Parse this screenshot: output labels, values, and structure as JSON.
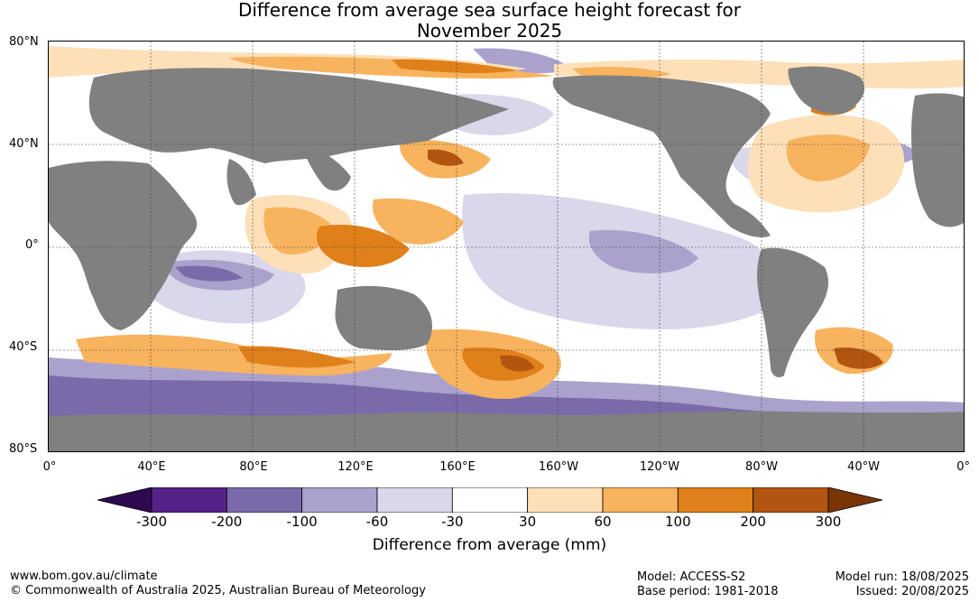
{
  "title": {
    "line1": "Difference from average sea surface height forecast for",
    "line2": "November 2025"
  },
  "map": {
    "lat_labels": [
      "80°N",
      "40°N",
      "0°",
      "40°S",
      "80°S"
    ],
    "lon_labels": [
      "0°",
      "40°E",
      "80°E",
      "120°E",
      "160°E",
      "160°W",
      "120°W",
      "80°W",
      "40°W",
      "0°"
    ],
    "land_color": "#808080",
    "grid": true
  },
  "colorbar": {
    "colors": [
      "#2d0a4f",
      "#56228a",
      "#7a6aaa",
      "#aaa2cc",
      "#d9d7ea",
      "#ffffff",
      "#fde0b8",
      "#f8b35e",
      "#e0801a",
      "#b25510",
      "#7a3406"
    ],
    "ticks": [
      "-300",
      "-200",
      "-100",
      "-60",
      "-30",
      "30",
      "60",
      "100",
      "200",
      "300"
    ],
    "label": "Difference from average (mm)"
  },
  "footer": {
    "website": "www.bom.gov.au/climate",
    "copyright": "© Commonwealth of Australia 2025, Australian Bureau of Meteorology",
    "model": "Model: ACCESS-S2",
    "base_period": "Base period: 1981-2018",
    "model_run": "Model run: 18/08/2025",
    "issued": "Issued: 20/08/2025"
  }
}
